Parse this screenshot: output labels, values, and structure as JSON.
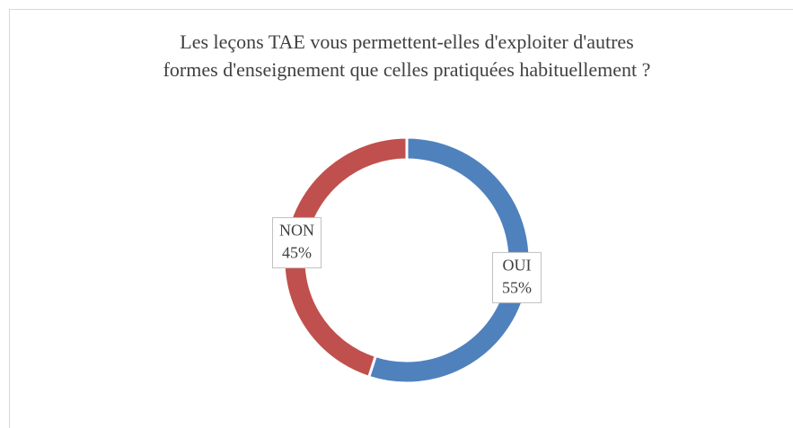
{
  "chart_data": {
    "type": "donut",
    "title": [
      "Les leçons TAE vous permettent-elles d'exploiter d'autres",
      "formes d'enseignement que celles pratiquées habituellement ?"
    ],
    "categories": [
      "OUI",
      "NON"
    ],
    "values": [
      55,
      45
    ],
    "value_labels": [
      "55%",
      "45%"
    ],
    "colors": [
      "#4f81bd",
      "#c0504d"
    ]
  }
}
